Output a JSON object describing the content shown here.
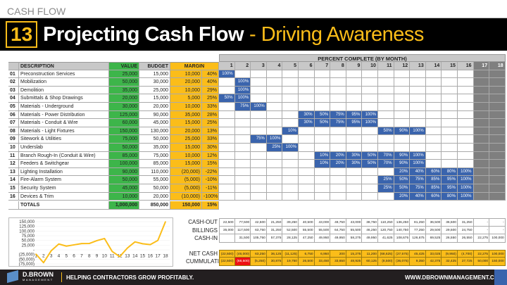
{
  "header": {
    "section": "CASH FLOW",
    "number": "13",
    "title": "Projecting Cash Flow",
    "subtitle": "- Driving Awareness"
  },
  "table": {
    "columns": {
      "description": "DESCRIPTION",
      "value": "VALUE",
      "budget": "BUDGET",
      "margin": "MARGIN"
    },
    "rows": [
      {
        "no": "01",
        "desc": "Preconstruction Services",
        "value": "25,000",
        "budget": "15,000",
        "margin": "10,000",
        "pct": "40%",
        "months": {
          "1": "100%"
        }
      },
      {
        "no": "02",
        "desc": "Mobilization",
        "value": "50,000",
        "budget": "30,000",
        "margin": "20,000",
        "pct": "40%",
        "months": {
          "2": "100%"
        }
      },
      {
        "no": "03",
        "desc": "Demolition",
        "value": "35,000",
        "budget": "25,000",
        "margin": "10,000",
        "pct": "29%",
        "months": {
          "2": "100%"
        }
      },
      {
        "no": "04",
        "desc": "Submittals & Shop Drawings",
        "value": "20,000",
        "budget": "15,000",
        "margin": "5,000",
        "pct": "25%",
        "months": {
          "1": "50%",
          "2": "100%"
        }
      },
      {
        "no": "05",
        "desc": "Materials - Underground",
        "value": "30,000",
        "budget": "20,000",
        "margin": "10,000",
        "pct": "33%",
        "months": {
          "2": "75%",
          "3": "100%"
        }
      },
      {
        "no": "06",
        "desc": "Materials - Power Distribution",
        "value": "125,000",
        "budget": "90,000",
        "margin": "35,000",
        "pct": "28%",
        "months": {
          "6": "30%",
          "7": "50%",
          "8": "75%",
          "9": "95%",
          "10": "100%"
        }
      },
      {
        "no": "07",
        "desc": "Materials - Conduit & Wire",
        "value": "60,000",
        "budget": "45,000",
        "margin": "15,000",
        "pct": "25%",
        "months": {
          "6": "30%",
          "7": "50%",
          "8": "75%",
          "9": "95%",
          "10": "100%"
        }
      },
      {
        "no": "08",
        "desc": "Materials - Light Fixtures",
        "value": "150,000",
        "budget": "130,000",
        "margin": "20,000",
        "pct": "13%",
        "months": {
          "5": "10%",
          "11": "50%",
          "12": "90%",
          "13": "100%"
        }
      },
      {
        "no": "09",
        "desc": "Sitework & Utilities",
        "value": "75,000",
        "budget": "50,000",
        "margin": "25,000",
        "pct": "33%",
        "months": {
          "3": "75%",
          "4": "100%"
        }
      },
      {
        "no": "10",
        "desc": "Underslab",
        "value": "50,000",
        "budget": "35,000",
        "margin": "15,000",
        "pct": "30%",
        "months": {
          "4": "25%",
          "5": "100%"
        }
      },
      {
        "no": "11",
        "desc": "Branch Rough-In (Conduit & Wire)",
        "value": "85,000",
        "budget": "75,000",
        "margin": "10,000",
        "pct": "12%",
        "months": {
          "7": "10%",
          "8": "20%",
          "9": "30%",
          "10": "50%",
          "11": "70%",
          "12": "90%",
          "13": "100%"
        }
      },
      {
        "no": "12",
        "desc": "Feeders & Switchgear",
        "value": "100,000",
        "budget": "85,000",
        "margin": "15,000",
        "pct": "15%",
        "months": {
          "7": "10%",
          "8": "20%",
          "9": "30%",
          "10": "50%",
          "11": "70%",
          "12": "90%",
          "13": "100%"
        }
      },
      {
        "no": "13",
        "desc": "Lighting Installation",
        "value": "90,000",
        "budget": "110,000",
        "margin": "(20,000)",
        "pct": "-22%",
        "months": {
          "12": "20%",
          "13": "40%",
          "14": "60%",
          "15": "80%",
          "16": "100%"
        }
      },
      {
        "no": "14",
        "desc": "Fire-Alarm System",
        "value": "50,000",
        "budget": "55,000",
        "margin": "(5,000)",
        "pct": "-10%",
        "months": {
          "11": "25%",
          "12": "50%",
          "13": "75%",
          "14": "85%",
          "15": "95%",
          "16": "100%"
        }
      },
      {
        "no": "15",
        "desc": "Security System",
        "value": "45,000",
        "budget": "50,000",
        "margin": "(5,000)",
        "pct": "-11%",
        "months": {
          "11": "25%",
          "12": "50%",
          "13": "75%",
          "14": "85%",
          "15": "95%",
          "16": "100%"
        }
      },
      {
        "no": "16",
        "desc": "Devices & Trim",
        "value": "10,000",
        "budget": "20,000",
        "margin": "(10,000)",
        "pct": "-100%",
        "months": {
          "12": "20%",
          "13": "40%",
          "14": "60%",
          "15": "80%",
          "16": "100%"
        }
      }
    ],
    "totals": {
      "label": "TOTALS",
      "value": "1,000,000",
      "budget": "850,000",
      "margin": "150,000",
      "pct": "15%"
    }
  },
  "percent_complete": {
    "title": "PERCENT COMPLETE (BY MONTH)",
    "months": [
      "1",
      "2",
      "3",
      "4",
      "5",
      "6",
      "7",
      "8",
      "9",
      "10",
      "11",
      "12",
      "13",
      "14",
      "15",
      "16",
      "17",
      "18"
    ]
  },
  "cashflow": {
    "cash_out": {
      "label": "CASH-OUT",
      "values": [
        "22,500",
        "77,500",
        "42,500",
        "21,250",
        "39,250",
        "40,500",
        "43,000",
        "49,750",
        "43,000",
        "38,750",
        "110,250",
        "136,250",
        "81,250",
        "36,500",
        "36,500",
        "31,250",
        "-",
        "-"
      ]
    },
    "billings": {
      "label": "BILLINGS",
      "values": [
        "35,000",
        "117,500",
        "63,750",
        "31,250",
        "52,500",
        "55,500",
        "55,500",
        "64,750",
        "55,500",
        "46,250",
        "120,750",
        "140,750",
        "77,250",
        "29,500",
        "29,500",
        "24,750",
        "-",
        "-"
      ]
    },
    "cash_in": {
      "label": "CASH-IN",
      "values": [
        "",
        "31,500",
        "105,750",
        "57,375",
        "28,125",
        "47,250",
        "49,950",
        "49,950",
        "58,275",
        "49,950",
        "41,625",
        "108,675",
        "126,675",
        "69,525",
        "26,550",
        "26,550",
        "22,275",
        "100,000"
      ]
    },
    "net_cash": {
      "label": "NET CASH",
      "values": [
        "(22,500)",
        "(46,000)",
        "63,250",
        "36,125",
        "(11,125)",
        "6,750",
        "6,950",
        "200",
        "15,275",
        "11,200",
        "(68,625)",
        "(27,575)",
        "45,425",
        "33,025",
        "(9,950)",
        "(4,700)",
        "22,275",
        "100,000"
      ]
    },
    "cumulative": {
      "label": "CUMMULATIVE",
      "values": [
        "(22,500)",
        "(68,500)",
        "(5,250)",
        "30,875",
        "19,750",
        "26,500",
        "33,450",
        "33,650",
        "48,925",
        "60,125",
        "(8,500)",
        "(36,075)",
        "9,350",
        "42,375",
        "32,425",
        "27,725",
        "50,000",
        "150,000"
      ]
    }
  },
  "chart_data": {
    "type": "line",
    "x": [
      1,
      2,
      3,
      4,
      5,
      6,
      7,
      8,
      9,
      10,
      11,
      12,
      13,
      14,
      15,
      16,
      17,
      18
    ],
    "series": [
      {
        "values": [
          -22500,
          -68500,
          -5250,
          30875,
          19750,
          26500,
          33450,
          33650,
          48925,
          60125,
          -8500,
          -36075,
          9350,
          42375,
          32425,
          27725,
          50000,
          150000
        ],
        "color": "#fbbd19"
      }
    ],
    "ylim": [
      -75000,
      150000
    ],
    "yticks": [
      "150,000",
      "125,000",
      "100,000",
      "75,000",
      "50,000",
      "25,000",
      "-",
      "(25,000)",
      "(50,000)",
      "(75,000)"
    ],
    "grid": true
  },
  "colors": {
    "value": "#3db54a",
    "margin": "#fbbd19",
    "progress": "#3a64ad",
    "negative": "#ee1111"
  },
  "footer": {
    "brand": "D.BROWN",
    "brand_sub": "MANAGEMENT",
    "tagline": "HELPING CONTRACTORS GROW PROFITABLY.",
    "url": "WWW.DBROWNMANAGEMENT.COM"
  }
}
